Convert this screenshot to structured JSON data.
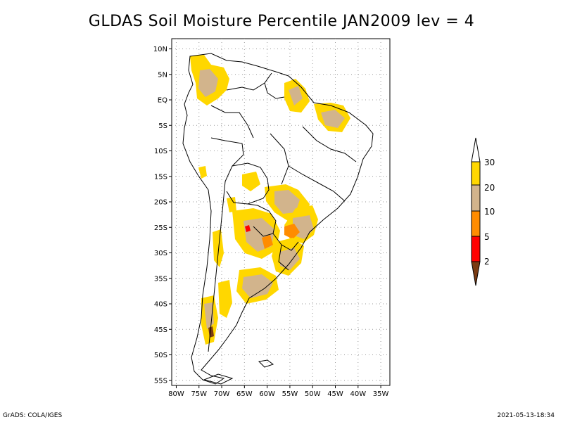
{
  "title": "GLDAS Soil Moisture Percentile JAN2009 lev = 4",
  "map": {
    "lon_range": [
      -81,
      -33
    ],
    "lat_range": [
      -56,
      12
    ],
    "lat_ticks": [
      {
        "value": 10,
        "label": "10N"
      },
      {
        "value": 5,
        "label": "5N"
      },
      {
        "value": 0,
        "label": "EQ"
      },
      {
        "value": -5,
        "label": "5S"
      },
      {
        "value": -10,
        "label": "10S"
      },
      {
        "value": -15,
        "label": "15S"
      },
      {
        "value": -20,
        "label": "20S"
      },
      {
        "value": -25,
        "label": "25S"
      },
      {
        "value": -30,
        "label": "30S"
      },
      {
        "value": -35,
        "label": "35S"
      },
      {
        "value": -40,
        "label": "40S"
      },
      {
        "value": -45,
        "label": "45S"
      },
      {
        "value": -50,
        "label": "50S"
      },
      {
        "value": -55,
        "label": "55S"
      }
    ],
    "lon_ticks": [
      {
        "value": -80,
        "label": "80W"
      },
      {
        "value": -75,
        "label": "75W"
      },
      {
        "value": -70,
        "label": "70W"
      },
      {
        "value": -65,
        "label": "65W"
      },
      {
        "value": -60,
        "label": "60W"
      },
      {
        "value": -55,
        "label": "55W"
      },
      {
        "value": -50,
        "label": "50W"
      },
      {
        "value": -45,
        "label": "45W"
      },
      {
        "value": -40,
        "label": "40W"
      },
      {
        "value": -35,
        "label": "35W"
      }
    ],
    "colors": {
      "under_2": "#7a3b12",
      "2_5": "#ff0000",
      "5_10": "#ff8c00",
      "10_20": "#d2b48c",
      "20_30": "#ffd700",
      "over_30": "#ffffff"
    }
  },
  "colorbar": {
    "labels": [
      "2",
      "5",
      "10",
      "20",
      "30"
    ]
  },
  "footer": {
    "left": "GrADS: COLA/IGES",
    "right": "2021-05-13-18:34"
  }
}
